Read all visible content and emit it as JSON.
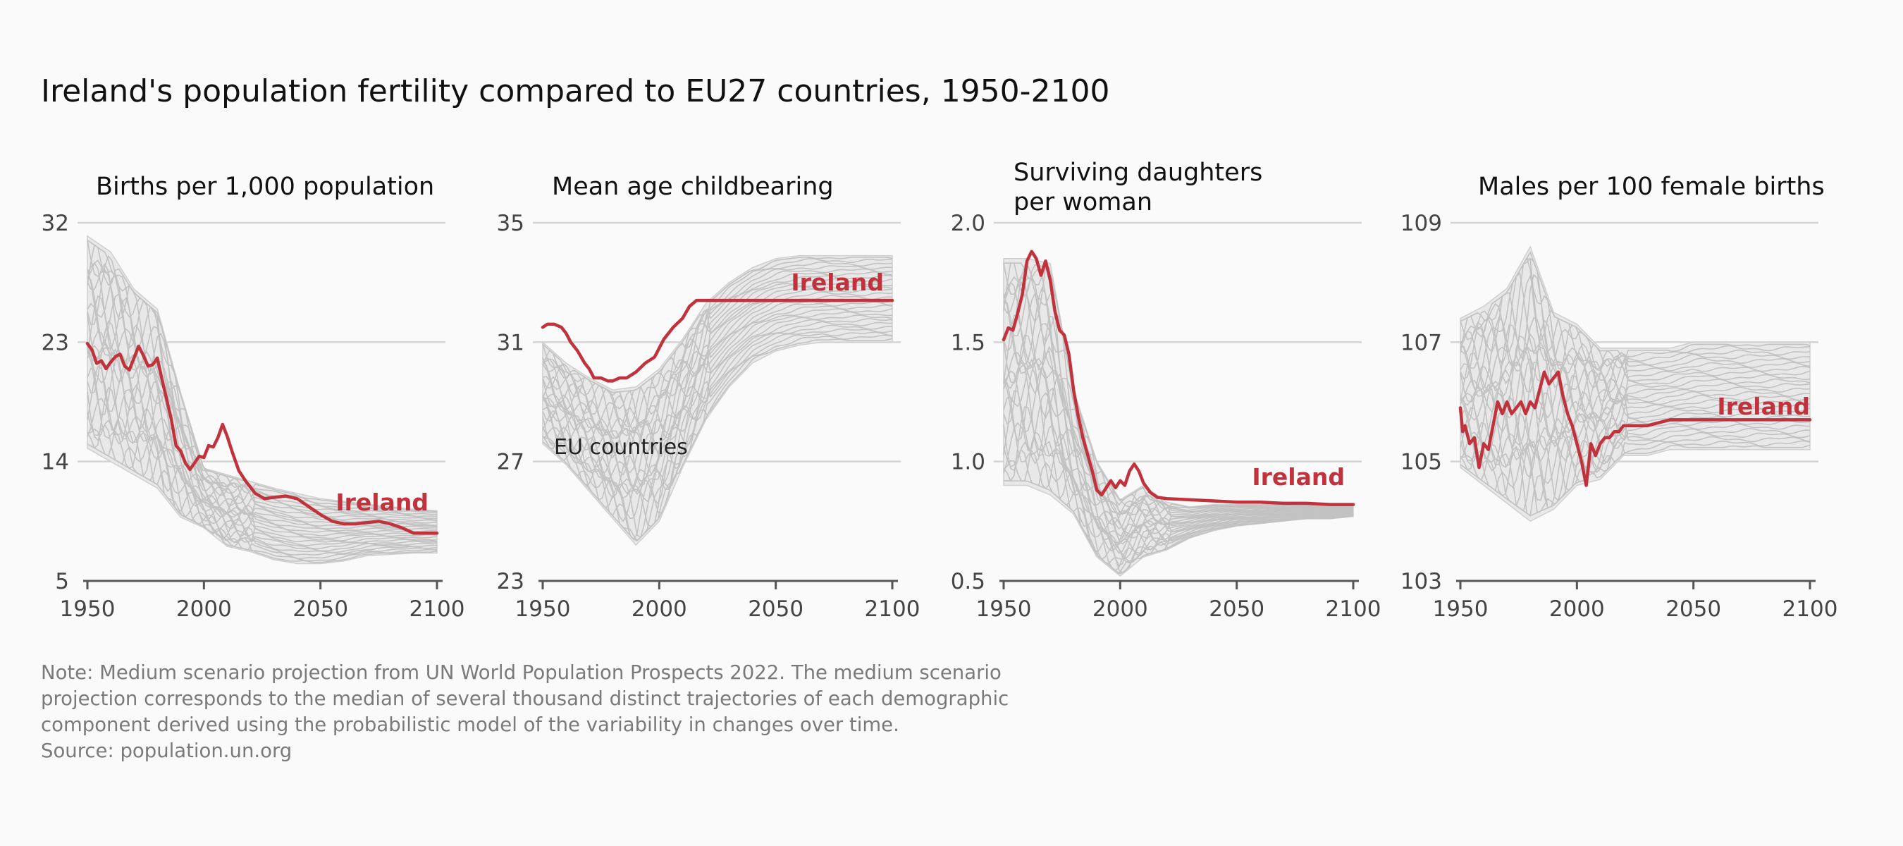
{
  "title": "Ireland's population fertility compared to EU27 countries, 1950-2100",
  "note_lines": [
    "Note: Medium scenario projection from UN World Population Prospects 2022. The medium scenario",
    "projection corresponds to the median of several thousand distinct trajectories of each demographic",
    "component derived using the probabilistic model of the variability in changes over time.",
    "Source: population.un.org"
  ],
  "colors": {
    "ireland": "#c0333d",
    "eu_lines": "#c2c2c2",
    "eu_band": "#e8e8e8",
    "grid": "#d4d4d4",
    "axis": "#555555"
  },
  "chart_data": [
    {
      "type": "line",
      "title": "Births per 1,000 population",
      "ylim": [
        5,
        32
      ],
      "yticks": [
        5,
        14,
        23,
        32
      ],
      "xticks": [
        1950,
        2000,
        2050,
        2100
      ],
      "x_range": [
        1950,
        2100
      ],
      "grid": "horizontal",
      "highlight_label": "Ireland",
      "highlight_series": {
        "name": "Ireland",
        "points": [
          [
            1950,
            22.9
          ],
          [
            1952,
            22.4
          ],
          [
            1954,
            21.4
          ],
          [
            1956,
            21.6
          ],
          [
            1958,
            21.0
          ],
          [
            1960,
            21.5
          ],
          [
            1962,
            21.9
          ],
          [
            1964,
            22.1
          ],
          [
            1966,
            21.2
          ],
          [
            1968,
            20.9
          ],
          [
            1970,
            21.8
          ],
          [
            1972,
            22.7
          ],
          [
            1974,
            22.0
          ],
          [
            1976,
            21.2
          ],
          [
            1978,
            21.3
          ],
          [
            1980,
            21.8
          ],
          [
            1982,
            20.2
          ],
          [
            1984,
            18.7
          ],
          [
            1986,
            17.2
          ],
          [
            1988,
            15.2
          ],
          [
            1990,
            14.8
          ],
          [
            1992,
            13.9
          ],
          [
            1994,
            13.4
          ],
          [
            1996,
            13.9
          ],
          [
            1998,
            14.4
          ],
          [
            2000,
            14.3
          ],
          [
            2002,
            15.2
          ],
          [
            2004,
            15.1
          ],
          [
            2006,
            15.8
          ],
          [
            2008,
            16.8
          ],
          [
            2010,
            15.9
          ],
          [
            2012,
            14.8
          ],
          [
            2015,
            13.3
          ],
          [
            2018,
            12.5
          ],
          [
            2022,
            11.6
          ],
          [
            2026,
            11.2
          ],
          [
            2030,
            11.3
          ],
          [
            2035,
            11.4
          ],
          [
            2040,
            11.2
          ],
          [
            2045,
            10.6
          ],
          [
            2050,
            10.0
          ],
          [
            2055,
            9.5
          ],
          [
            2060,
            9.3
          ],
          [
            2065,
            9.3
          ],
          [
            2070,
            9.4
          ],
          [
            2075,
            9.5
          ],
          [
            2080,
            9.3
          ],
          [
            2085,
            9.0
          ],
          [
            2090,
            8.6
          ],
          [
            2095,
            8.6
          ],
          [
            2100,
            8.6
          ]
        ]
      },
      "band": {
        "x": [
          1950,
          1960,
          1970,
          1980,
          1990,
          2000,
          2010,
          2020,
          2030,
          2040,
          2050,
          2060,
          2070,
          2080,
          2090,
          2100
        ],
        "upper": [
          31.0,
          29.8,
          27.0,
          25.5,
          19.2,
          13.5,
          13.0,
          12.5,
          12.0,
          11.6,
          11.2,
          11.0,
          10.8,
          10.6,
          10.4,
          10.3
        ],
        "lower": [
          15.0,
          14.0,
          13.0,
          12.0,
          9.8,
          9.0,
          7.6,
          7.2,
          6.6,
          6.3,
          6.3,
          6.5,
          6.9,
          7.0,
          7.1,
          7.1
        ]
      },
      "eu_country_series_count": 26
    },
    {
      "type": "line",
      "title": "Mean age childbearing",
      "ylim": [
        23,
        35
      ],
      "yticks": [
        23,
        27,
        31,
        35
      ],
      "xticks": [
        1950,
        2000,
        2050,
        2100
      ],
      "x_range": [
        1950,
        2100
      ],
      "grid": "horizontal",
      "highlight_label": "Ireland",
      "annotation": "EU countries",
      "highlight_series": {
        "name": "Ireland",
        "points": [
          [
            1950,
            31.5
          ],
          [
            1952,
            31.6
          ],
          [
            1955,
            31.6
          ],
          [
            1958,
            31.5
          ],
          [
            1960,
            31.3
          ],
          [
            1962,
            31.0
          ],
          [
            1965,
            30.7
          ],
          [
            1968,
            30.3
          ],
          [
            1970,
            30.1
          ],
          [
            1972,
            29.8
          ],
          [
            1975,
            29.8
          ],
          [
            1978,
            29.7
          ],
          [
            1980,
            29.7
          ],
          [
            1983,
            29.8
          ],
          [
            1986,
            29.8
          ],
          [
            1990,
            30.0
          ],
          [
            1994,
            30.3
          ],
          [
            1998,
            30.5
          ],
          [
            2002,
            31.1
          ],
          [
            2006,
            31.5
          ],
          [
            2010,
            31.8
          ],
          [
            2013,
            32.2
          ],
          [
            2016,
            32.4
          ],
          [
            2020,
            32.4
          ],
          [
            2030,
            32.4
          ],
          [
            2040,
            32.4
          ],
          [
            2050,
            32.4
          ],
          [
            2060,
            32.4
          ],
          [
            2070,
            32.4
          ],
          [
            2080,
            32.4
          ],
          [
            2090,
            32.4
          ],
          [
            2100,
            32.4
          ]
        ]
      },
      "band": {
        "x": [
          1950,
          1960,
          1970,
          1980,
          1990,
          2000,
          2010,
          2020,
          2030,
          2040,
          2050,
          2060,
          2070,
          2080,
          2090,
          2100
        ],
        "upper": [
          31.0,
          30.3,
          29.8,
          29.4,
          29.5,
          30.1,
          31.1,
          32.3,
          33.0,
          33.5,
          33.8,
          33.9,
          33.9,
          33.9,
          33.9,
          33.9
        ],
        "lower": [
          27.6,
          26.9,
          26.0,
          25.1,
          24.2,
          25.0,
          26.8,
          28.4,
          29.5,
          30.3,
          30.7,
          30.9,
          31.0,
          31.0,
          31.0,
          31.0
        ]
      },
      "eu_country_series_count": 26
    },
    {
      "type": "line",
      "title": "Surviving daughters per woman",
      "title_lines": [
        "Surviving daughters",
        "per woman"
      ],
      "ylim": [
        0.5,
        2.0
      ],
      "yticks": [
        0.5,
        1.0,
        1.5,
        2.0
      ],
      "ytick_labels": [
        "0.5",
        "1.0",
        "1.5",
        "2.0"
      ],
      "xticks": [
        1950,
        2000,
        2050,
        2100
      ],
      "x_range": [
        1950,
        2100
      ],
      "grid": "horizontal",
      "highlight_label": "Ireland",
      "highlight_series": {
        "name": "Ireland",
        "points": [
          [
            1950,
            1.51
          ],
          [
            1952,
            1.56
          ],
          [
            1954,
            1.55
          ],
          [
            1956,
            1.62
          ],
          [
            1958,
            1.7
          ],
          [
            1960,
            1.84
          ],
          [
            1962,
            1.88
          ],
          [
            1964,
            1.85
          ],
          [
            1966,
            1.78
          ],
          [
            1968,
            1.84
          ],
          [
            1970,
            1.76
          ],
          [
            1972,
            1.63
          ],
          [
            1974,
            1.55
          ],
          [
            1976,
            1.53
          ],
          [
            1978,
            1.45
          ],
          [
            1980,
            1.3
          ],
          [
            1982,
            1.19
          ],
          [
            1984,
            1.1
          ],
          [
            1986,
            1.03
          ],
          [
            1988,
            0.96
          ],
          [
            1990,
            0.88
          ],
          [
            1992,
            0.86
          ],
          [
            1994,
            0.89
          ],
          [
            1996,
            0.92
          ],
          [
            1998,
            0.89
          ],
          [
            2000,
            0.92
          ],
          [
            2002,
            0.9
          ],
          [
            2004,
            0.96
          ],
          [
            2006,
            0.99
          ],
          [
            2008,
            0.96
          ],
          [
            2010,
            0.91
          ],
          [
            2013,
            0.87
          ],
          [
            2016,
            0.85
          ],
          [
            2020,
            0.845
          ],
          [
            2030,
            0.84
          ],
          [
            2040,
            0.835
          ],
          [
            2050,
            0.83
          ],
          [
            2060,
            0.83
          ],
          [
            2070,
            0.825
          ],
          [
            2080,
            0.825
          ],
          [
            2090,
            0.82
          ],
          [
            2100,
            0.82
          ]
        ]
      },
      "band": {
        "x": [
          1950,
          1960,
          1970,
          1980,
          1990,
          2000,
          2010,
          2020,
          2030,
          2040,
          2050,
          2060,
          2070,
          2080,
          2090,
          2100
        ],
        "upper": [
          1.85,
          1.85,
          1.83,
          1.3,
          1.0,
          0.84,
          0.9,
          0.83,
          0.81,
          0.82,
          0.82,
          0.82,
          0.82,
          0.82,
          0.82,
          0.82
        ],
        "lower": [
          0.9,
          0.9,
          0.86,
          0.78,
          0.6,
          0.52,
          0.6,
          0.63,
          0.68,
          0.71,
          0.73,
          0.74,
          0.75,
          0.76,
          0.76,
          0.77
        ]
      },
      "eu_country_series_count": 26
    },
    {
      "type": "line",
      "title": "Males per 100 female births",
      "ylim": [
        103,
        109
      ],
      "yticks": [
        103,
        105,
        107,
        109
      ],
      "xticks": [
        1950,
        2000,
        2050,
        2100
      ],
      "x_range": [
        1950,
        2100
      ],
      "grid": "horizontal",
      "highlight_label": "Ireland",
      "highlight_series": {
        "name": "Ireland",
        "points": [
          [
            1950,
            105.9
          ],
          [
            1951,
            105.5
          ],
          [
            1952,
            105.6
          ],
          [
            1954,
            105.3
          ],
          [
            1956,
            105.4
          ],
          [
            1958,
            104.9
          ],
          [
            1960,
            105.3
          ],
          [
            1962,
            105.2
          ],
          [
            1964,
            105.6
          ],
          [
            1966,
            106.0
          ],
          [
            1968,
            105.8
          ],
          [
            1970,
            106.0
          ],
          [
            1972,
            105.8
          ],
          [
            1974,
            105.9
          ],
          [
            1976,
            106.0
          ],
          [
            1978,
            105.8
          ],
          [
            1980,
            106.0
          ],
          [
            1982,
            105.9
          ],
          [
            1984,
            106.2
          ],
          [
            1986,
            106.5
          ],
          [
            1988,
            106.3
          ],
          [
            1990,
            106.4
          ],
          [
            1992,
            106.5
          ],
          [
            1994,
            106.1
          ],
          [
            1996,
            105.8
          ],
          [
            1998,
            105.6
          ],
          [
            2000,
            105.3
          ],
          [
            2002,
            105.0
          ],
          [
            2004,
            104.6
          ],
          [
            2006,
            105.3
          ],
          [
            2008,
            105.1
          ],
          [
            2010,
            105.3
          ],
          [
            2012,
            105.4
          ],
          [
            2014,
            105.4
          ],
          [
            2016,
            105.5
          ],
          [
            2018,
            105.5
          ],
          [
            2020,
            105.6
          ],
          [
            2025,
            105.6
          ],
          [
            2030,
            105.6
          ],
          [
            2040,
            105.7
          ],
          [
            2050,
            105.7
          ],
          [
            2060,
            105.7
          ],
          [
            2070,
            105.7
          ],
          [
            2080,
            105.7
          ],
          [
            2090,
            105.7
          ],
          [
            2100,
            105.7
          ]
        ]
      },
      "band": {
        "x": [
          1950,
          1960,
          1970,
          1980,
          1990,
          2000,
          2010,
          2020,
          2030,
          2040,
          2050,
          2060,
          2070,
          2080,
          2090,
          2100
        ],
        "upper": [
          107.4,
          107.6,
          107.9,
          108.6,
          107.5,
          107.3,
          106.9,
          106.9,
          106.9,
          106.9,
          107.0,
          107.0,
          107.0,
          107.0,
          107.0,
          107.0
        ],
        "lower": [
          104.9,
          104.6,
          104.3,
          104.0,
          104.2,
          104.6,
          104.7,
          105.1,
          105.1,
          105.2,
          105.2,
          105.2,
          105.2,
          105.2,
          105.2,
          105.2
        ]
      },
      "eu_country_series_count": 26
    }
  ]
}
